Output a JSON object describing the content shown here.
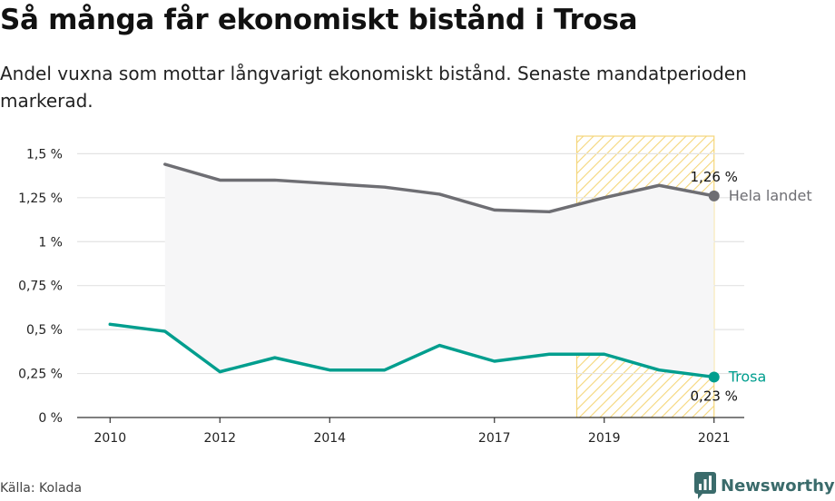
{
  "title": "Så många får ekonomiskt bistånd i Trosa",
  "subtitle": "Andel vuxna som mottar långvarigt ekonomiskt bistånd. Senaste mandatperioden markerad.",
  "source": "Källa: Kolada",
  "brand": "Newsworthy",
  "colors": {
    "trosa": "#009e8e",
    "hela_landet": "#6e6e73",
    "highlight": "#f5d67a",
    "area": "#f6f6f7",
    "brand": "#3a6b6b"
  },
  "chart_data": {
    "type": "line",
    "x": [
      2010,
      2011,
      2012,
      2013,
      2014,
      2015,
      2016,
      2017,
      2018,
      2019,
      2020,
      2021
    ],
    "x_ticks": [
      2010,
      2012,
      2014,
      2017,
      2019,
      2021
    ],
    "y_ticks": [
      "0 %",
      "0,25 %",
      "0,5 %",
      "0,75 %",
      "1 %",
      "1,25 %",
      "1,5 %"
    ],
    "y_tick_values": [
      0,
      0.25,
      0.5,
      0.75,
      1.0,
      1.25,
      1.5
    ],
    "ylim": [
      0,
      1.6
    ],
    "xlim": [
      2009.4,
      2021.55
    ],
    "grid": true,
    "highlight_range": [
      2018.5,
      2021
    ],
    "series": [
      {
        "name": "Hela landet",
        "key": "hela_landet",
        "values": [
          null,
          1.44,
          1.35,
          1.35,
          1.33,
          1.31,
          1.27,
          1.18,
          1.17,
          1.25,
          1.32,
          1.26
        ],
        "end_label": "1,26 %"
      },
      {
        "name": "Trosa",
        "key": "trosa",
        "values": [
          0.53,
          0.49,
          0.26,
          0.34,
          0.27,
          0.27,
          0.41,
          0.32,
          0.36,
          0.36,
          0.27,
          0.23
        ],
        "end_label": "0,23 %"
      }
    ]
  }
}
